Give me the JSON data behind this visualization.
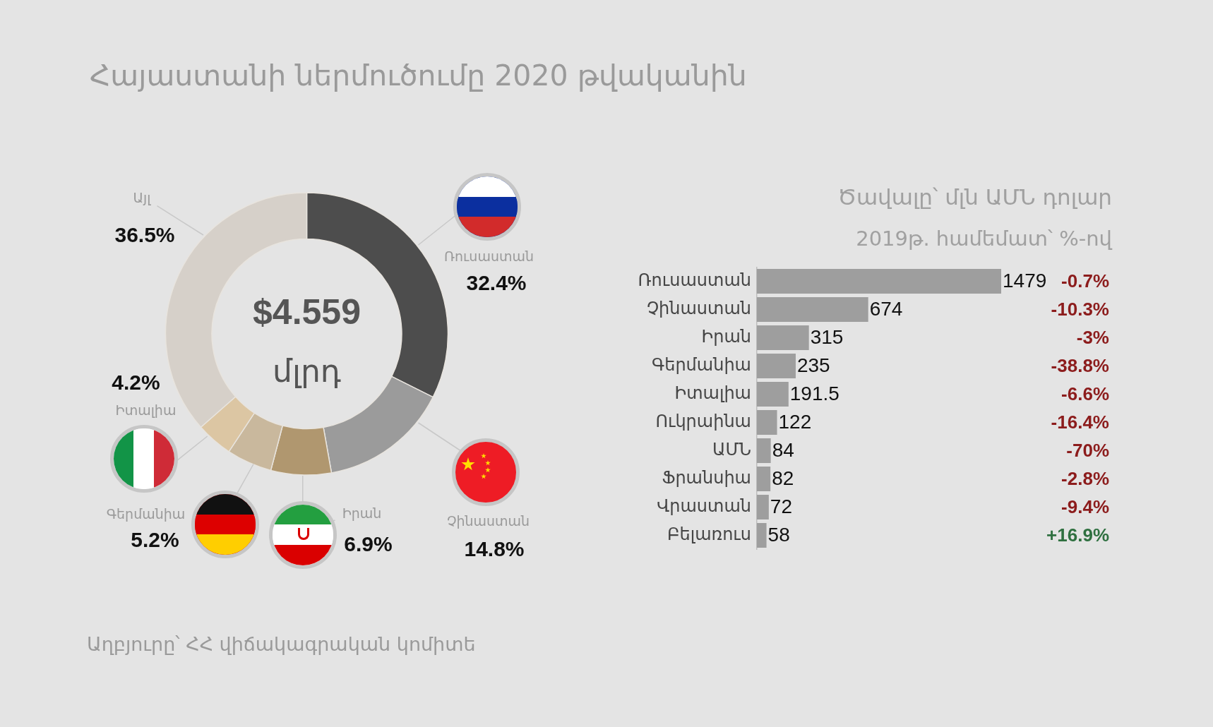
{
  "chart_data": [
    {
      "type": "donut",
      "title": "Հայաստանի ներմուծումը 2020 թվականին",
      "categories": [
        "Ռուսաստան",
        "Չինաստան",
        "Իրան",
        "Գերմանիա",
        "Իտալիա",
        "Այլ"
      ],
      "values": [
        32.4,
        14.8,
        6.9,
        5.2,
        4.2,
        36.5
      ],
      "colors": [
        "#4d4d4d",
        "#9b9b9b",
        "#b0976f",
        "#c9b89d",
        "#dcc6a3",
        "#d6d0c9"
      ],
      "value_labels": [
        "32.4%",
        "14.8%",
        "6.9%",
        "5.2%",
        "4.2%",
        "36.5%"
      ],
      "annotations": [
        "$4.559",
        "մլրդ",
        "Աղբյուրը՝ ՀՀ վիճակագրական կոմիտե"
      ]
    },
    {
      "type": "bar",
      "orientation": "horizontal",
      "title": "Ծավալը՝ մլն ԱՄՆ դոլար",
      "subtitle": "2019թ. համեմատ՝ %-ով",
      "categories": [
        "Ռուսաստան",
        "Չինաստան",
        "Իրան",
        "Գերմանիա",
        "Իտալիա",
        "Ուկրաինա",
        "ԱՄՆ",
        "Ֆրանսիա",
        "Վրաստան",
        "Բելառուս"
      ],
      "values": [
        1479,
        674,
        315,
        235,
        191.5,
        122,
        84,
        82,
        72,
        58
      ],
      "color": "#9e9e9e",
      "data_labels": true,
      "tick_labels": "y",
      "annotations": [
        "-0.7%",
        "-10.3%",
        "-3%",
        "-38.8%",
        "-6.6%",
        "-16.4%",
        "-70%",
        "-2.8%",
        "-9.4%",
        "+16.9%"
      ]
    }
  ]
}
